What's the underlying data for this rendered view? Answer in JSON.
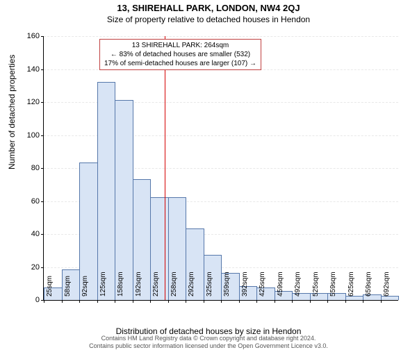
{
  "title": "13, SHIREHALL PARK, LONDON, NW4 2QJ",
  "subtitle": "Size of property relative to detached houses in Hendon",
  "ylabel": "Number of detached properties",
  "xlabel": "Distribution of detached houses by size in Hendon",
  "footer_line1": "Contains HM Land Registry data © Crown copyright and database right 2024.",
  "footer_line2": "Contains public sector information licensed under the Open Government Licence v3.0.",
  "annotation": {
    "line1": "13 SHIREHALL PARK: 264sqm",
    "line2": "← 83% of detached houses are smaller (532)",
    "line3": "17% of semi-detached houses are larger (107) →"
  },
  "chart": {
    "type": "histogram",
    "ylim": [
      0,
      160
    ],
    "ytick_step": 20,
    "bar_fill": "#d8e4f5",
    "bar_stroke": "#5577aa",
    "grid_color": "#e8e8e8",
    "background": "#ffffff",
    "ref_line_color": "#d40000",
    "ref_line_x_value": 264,
    "categories": [
      "25sqm",
      "58sqm",
      "92sqm",
      "125sqm",
      "158sqm",
      "192sqm",
      "225sqm",
      "258sqm",
      "292sqm",
      "325sqm",
      "359sqm",
      "392sqm",
      "425sqm",
      "459sqm",
      "492sqm",
      "525sqm",
      "559sqm",
      "625sqm",
      "659sqm",
      "692sqm"
    ],
    "values": [
      7,
      18,
      83,
      132,
      121,
      73,
      62,
      62,
      43,
      27,
      16,
      8,
      7,
      5,
      4,
      4,
      4,
      2,
      3,
      2
    ],
    "title_fontsize": 13,
    "label_fontsize": 12,
    "tick_fontsize": 11
  }
}
